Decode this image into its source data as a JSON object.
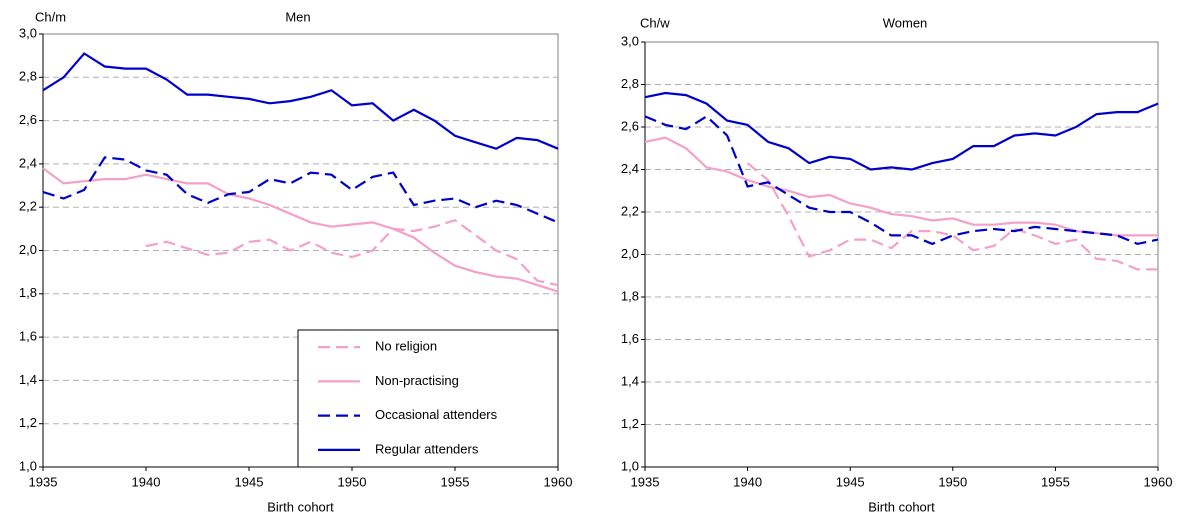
{
  "chart_data": [
    {
      "type": "line",
      "title": "Men",
      "y_label": "Ch/m",
      "x_label": "Birth cohort",
      "x": [
        1935,
        1936,
        1937,
        1938,
        1939,
        1940,
        1941,
        1942,
        1943,
        1944,
        1945,
        1946,
        1947,
        1948,
        1949,
        1950,
        1951,
        1952,
        1953,
        1954,
        1955,
        1956,
        1957,
        1958,
        1959,
        1960
      ],
      "xlim": [
        1935,
        1960
      ],
      "xticks": [
        1935,
        1940,
        1945,
        1950,
        1955,
        1960
      ],
      "ylim": [
        1.0,
        3.0
      ],
      "yticks": [
        {
          "value": 1.0,
          "label": "1,0"
        },
        {
          "value": 1.2,
          "label": "1,2"
        },
        {
          "value": 1.4,
          "label": "1,4"
        },
        {
          "value": 1.6,
          "label": "1,6"
        },
        {
          "value": 1.8,
          "label": "1,8"
        },
        {
          "value": 2.0,
          "label": "2,0"
        },
        {
          "value": 2.2,
          "label": "2,2"
        },
        {
          "value": 2.4,
          "label": "2,4"
        },
        {
          "value": 2.6,
          "label": "2,6"
        },
        {
          "value": 2.8,
          "label": "2,8"
        },
        {
          "value": 3.0,
          "label": "3,0"
        }
      ],
      "grid": true,
      "legend": "lower right",
      "series": [
        {
          "name": "No religion",
          "color": "#f4a0c8",
          "style": "dashed",
          "values": [
            null,
            null,
            null,
            null,
            null,
            2.02,
            2.04,
            2.01,
            1.98,
            1.99,
            2.04,
            2.05,
            2.0,
            2.04,
            1.99,
            1.97,
            2.0,
            2.1,
            2.09,
            2.11,
            2.14,
            2.07,
            2.0,
            1.96,
            1.86,
            1.84
          ]
        },
        {
          "name": "Non-practising",
          "color": "#f4a0c8",
          "style": "solid",
          "values": [
            2.38,
            2.31,
            2.32,
            2.33,
            2.33,
            2.35,
            2.33,
            2.31,
            2.31,
            2.26,
            2.24,
            2.21,
            2.17,
            2.13,
            2.11,
            2.12,
            2.13,
            2.1,
            2.06,
            1.99,
            1.93,
            1.9,
            1.88,
            1.87,
            1.84,
            1.81
          ]
        },
        {
          "name": "Occasional attenders",
          "color": "#0000cc",
          "style": "dashed",
          "values": [
            2.27,
            2.24,
            2.28,
            2.43,
            2.42,
            2.37,
            2.35,
            2.26,
            2.22,
            2.26,
            2.27,
            2.33,
            2.31,
            2.36,
            2.35,
            2.28,
            2.34,
            2.36,
            2.21,
            2.23,
            2.24,
            2.2,
            2.23,
            2.21,
            2.17,
            2.13
          ]
        },
        {
          "name": "Regular attenders",
          "color": "#0000cc",
          "style": "solid",
          "values": [
            2.74,
            2.8,
            2.91,
            2.85,
            2.84,
            2.84,
            2.79,
            2.72,
            2.72,
            2.71,
            2.7,
            2.68,
            2.69,
            2.71,
            2.74,
            2.67,
            2.68,
            2.6,
            2.65,
            2.6,
            2.53,
            2.5,
            2.47,
            2.52,
            2.51,
            2.47
          ]
        }
      ]
    },
    {
      "type": "line",
      "title": "Women",
      "y_label": "Ch/w",
      "x_label": "Birth cohort",
      "x": [
        1935,
        1936,
        1937,
        1938,
        1939,
        1940,
        1941,
        1942,
        1943,
        1944,
        1945,
        1946,
        1947,
        1948,
        1949,
        1950,
        1951,
        1952,
        1953,
        1954,
        1955,
        1956,
        1957,
        1958,
        1959,
        1960
      ],
      "xlim": [
        1935,
        1960
      ],
      "xticks": [
        1935,
        1940,
        1945,
        1950,
        1955,
        1960
      ],
      "ylim": [
        1.0,
        3.0
      ],
      "yticks": [
        {
          "value": 1.0,
          "label": "1,0"
        },
        {
          "value": 1.2,
          "label": "1,2"
        },
        {
          "value": 1.4,
          "label": "1,4"
        },
        {
          "value": 1.6,
          "label": "1,6"
        },
        {
          "value": 1.8,
          "label": "1,8"
        },
        {
          "value": 2.0,
          "label": "2,0"
        },
        {
          "value": 2.2,
          "label": "2,2"
        },
        {
          "value": 2.4,
          "label": "2,4"
        },
        {
          "value": 2.6,
          "label": "2,6"
        },
        {
          "value": 2.8,
          "label": "2,8"
        },
        {
          "value": 3.0,
          "label": "3,0"
        }
      ],
      "grid": true,
      "series": [
        {
          "color": "#f4a0c8",
          "style": "dashed",
          "values": [
            null,
            null,
            null,
            null,
            null,
            2.43,
            2.35,
            2.18,
            1.99,
            2.02,
            2.07,
            2.07,
            2.03,
            2.11,
            2.11,
            2.09,
            2.02,
            2.04,
            2.12,
            2.09,
            2.05,
            2.07,
            1.98,
            1.97,
            1.93,
            1.93
          ]
        },
        {
          "color": "#f4a0c8",
          "style": "solid",
          "values": [
            2.53,
            2.55,
            2.5,
            2.41,
            2.39,
            2.35,
            2.32,
            2.3,
            2.27,
            2.28,
            2.24,
            2.22,
            2.19,
            2.18,
            2.16,
            2.17,
            2.14,
            2.14,
            2.15,
            2.15,
            2.14,
            2.11,
            2.1,
            2.09,
            2.09,
            2.09
          ]
        },
        {
          "color": "#0000cc",
          "style": "dashed",
          "values": [
            2.65,
            2.61,
            2.59,
            2.65,
            2.56,
            2.32,
            2.34,
            2.28,
            2.22,
            2.2,
            2.2,
            2.15,
            2.09,
            2.09,
            2.05,
            2.09,
            2.11,
            2.12,
            2.11,
            2.13,
            2.12,
            2.11,
            2.1,
            2.09,
            2.05,
            2.07
          ]
        },
        {
          "color": "#0000cc",
          "style": "solid",
          "values": [
            2.74,
            2.76,
            2.75,
            2.71,
            2.63,
            2.61,
            2.53,
            2.5,
            2.43,
            2.46,
            2.45,
            2.4,
            2.41,
            2.4,
            2.43,
            2.45,
            2.51,
            2.51,
            2.56,
            2.57,
            2.56,
            2.6,
            2.66,
            2.67,
            2.67,
            2.71
          ]
        }
      ]
    }
  ]
}
